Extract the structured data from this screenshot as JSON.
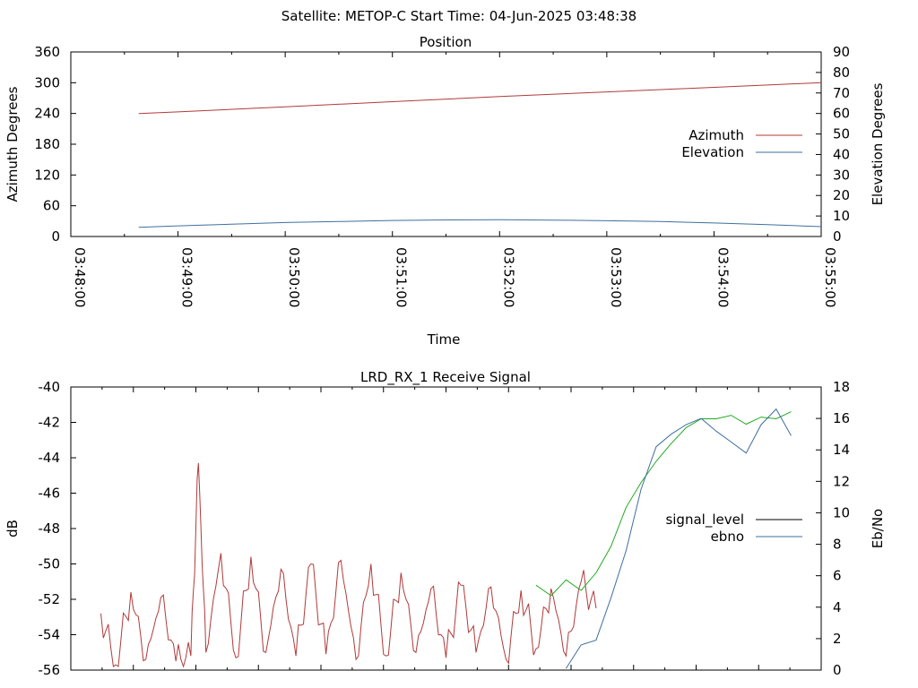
{
  "header": "Satellite: METOP-C    Start Time: 04-Jun-2025 03:48:38",
  "chart_data": [
    {
      "type": "line",
      "title": "Position",
      "xlabel": "Time",
      "ylabel": "Azimuth Degrees",
      "y2label": "Elevation Degrees",
      "xlim": [
        "03:48:00",
        "03:55:00"
      ],
      "x_ticks": [
        "03:48:00",
        "03:49:00",
        "03:50:00",
        "03:51:00",
        "03:52:00",
        "03:53:00",
        "03:54:00",
        "03:55:00"
      ],
      "ylim": [
        0,
        360
      ],
      "y_ticks": [
        "0",
        "60",
        "120",
        "180",
        "240",
        "300",
        "360"
      ],
      "y2lim": [
        0,
        90
      ],
      "y2_ticks": [
        "0",
        "10",
        "20",
        "30",
        "40",
        "50",
        "60",
        "70",
        "80",
        "90"
      ],
      "legend_position": "right",
      "series": [
        {
          "name": "Azimuth",
          "axis": "left",
          "color": "#b03a3a",
          "x": [
            "03:48:38",
            "03:49:00",
            "03:50:00",
            "03:51:00",
            "03:52:00",
            "03:53:00",
            "03:54:00",
            "03:55:00"
          ],
          "y": [
            240,
            243,
            253,
            263,
            273,
            282,
            291,
            300
          ]
        },
        {
          "name": "Elevation",
          "axis": "right",
          "color": "#3f6f9f",
          "x": [
            "03:48:38",
            "03:49:00",
            "03:49:30",
            "03:50:00",
            "03:50:30",
            "03:51:00",
            "03:51:30",
            "03:52:00",
            "03:52:30",
            "03:53:00",
            "03:53:30",
            "03:54:00",
            "03:54:30",
            "03:55:00"
          ],
          "y": [
            4.5,
            5.2,
            6.0,
            6.8,
            7.3,
            7.8,
            8.1,
            8.2,
            8.0,
            7.7,
            7.3,
            6.6,
            5.8,
            4.8
          ]
        }
      ]
    },
    {
      "type": "line",
      "title": "LRD_RX_1 Receive Signal",
      "xlabel": "",
      "ylabel": "dB",
      "y2label": "Eb/No",
      "ylim": [
        -56,
        -40
      ],
      "y_ticks": [
        "-56",
        "-54",
        "-52",
        "-50",
        "-48",
        "-46",
        "-44",
        "-42",
        "-40"
      ],
      "y2lim": [
        0,
        18
      ],
      "y2_ticks": [
        "0",
        "2",
        "4",
        "6",
        "8",
        "10",
        "12",
        "14",
        "16",
        "18"
      ],
      "legend_position": "right",
      "legend": [
        {
          "name": "signal_level",
          "color": "#000000"
        },
        {
          "name": "ebno",
          "color": "#3f6f9f"
        }
      ],
      "series": [
        {
          "name": "signal_level (low)",
          "axis": "left",
          "color": "#b03a3a",
          "segments": "noisy",
          "x": [
            0.04,
            0.06,
            0.08,
            0.1,
            0.12,
            0.14,
            0.16,
            0.17,
            0.18,
            0.2,
            0.22,
            0.24,
            0.26,
            0.28,
            0.3,
            0.32,
            0.34,
            0.36,
            0.38,
            0.4,
            0.42,
            0.44,
            0.46,
            0.48,
            0.5,
            0.52,
            0.54,
            0.56,
            0.58,
            0.6,
            0.62,
            0.64,
            0.66,
            0.68,
            0.7
          ],
          "y": [
            -52.8,
            -55.7,
            -51.6,
            -55.4,
            -51.9,
            -55.5,
            -55.2,
            -44.3,
            -55.0,
            -49.4,
            -55.3,
            -49.6,
            -55.0,
            -50.3,
            -55.2,
            -50.0,
            -55.1,
            -49.8,
            -55.4,
            -50.0,
            -55.2,
            -50.5,
            -55.0,
            -51.4,
            -55.3,
            -51.2,
            -55.0,
            -51.3,
            -55.4,
            -51.5,
            -54.8,
            -51.4,
            -55.2,
            -51.0,
            -52.5
          ]
        },
        {
          "name": "signal_level (rise)",
          "axis": "left",
          "color": "#22aa22",
          "x": [
            0.62,
            0.64,
            0.66,
            0.68,
            0.7,
            0.72,
            0.74,
            0.76,
            0.78,
            0.8,
            0.82,
            0.84,
            0.86,
            0.88,
            0.9,
            0.92,
            0.94,
            0.96
          ],
          "y": [
            -51.2,
            -51.8,
            -50.9,
            -51.5,
            -50.5,
            -49.0,
            -46.8,
            -45.4,
            -44.2,
            -43.2,
            -42.3,
            -41.8,
            -41.8,
            -41.6,
            -42.1,
            -41.7,
            -41.8,
            -41.4
          ]
        },
        {
          "name": "ebno",
          "axis": "right",
          "color": "#3f6f9f",
          "x": [
            0.66,
            0.68,
            0.7,
            0.72,
            0.74,
            0.76,
            0.78,
            0.8,
            0.82,
            0.84,
            0.86,
            0.88,
            0.9,
            0.92,
            0.94,
            0.96
          ],
          "y": [
            0.1,
            1.6,
            1.9,
            4.6,
            7.6,
            11.5,
            14.2,
            15.0,
            15.6,
            16.0,
            15.2,
            14.5,
            13.8,
            15.6,
            16.6,
            14.9
          ]
        }
      ]
    }
  ]
}
